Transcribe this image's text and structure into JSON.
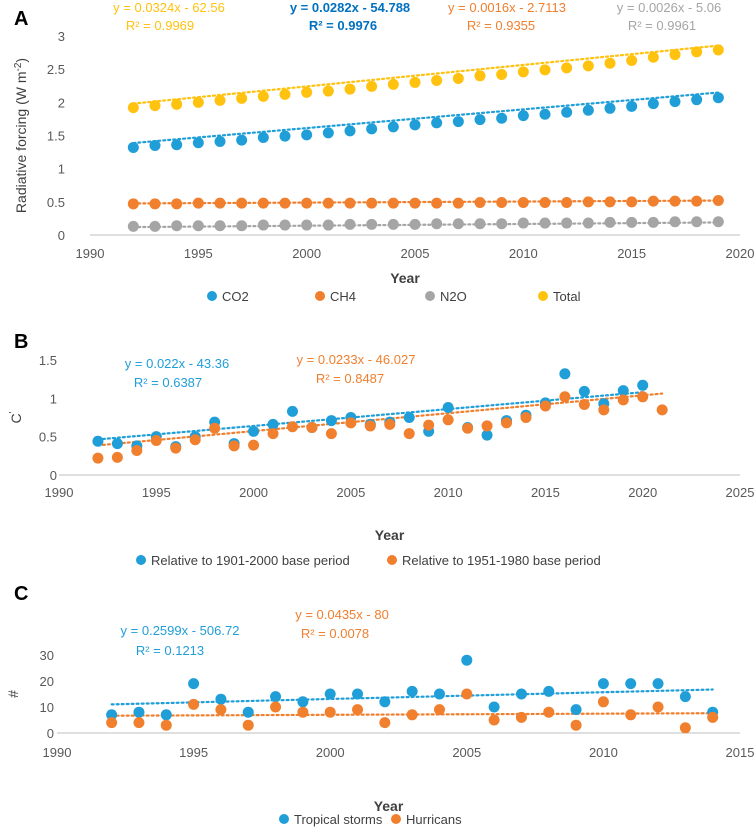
{
  "colors": {
    "co2": "#1F9ED8",
    "ch4": "#F07F2E",
    "n2o": "#A5A5A5",
    "total": "#FFC20E",
    "eq_co2": "#0070C0",
    "axis": "#BFBFBF",
    "text": "#595959",
    "dark": "#000000"
  },
  "chart_data": [
    {
      "panel": "A",
      "type": "scatter",
      "xlabel": "Year",
      "ylabel": "Radiative forcing (W m",
      "ylabel_sup": "-2",
      "ylabel_end": ")",
      "xlim": [
        1990,
        2020
      ],
      "ylim": [
        0,
        3
      ],
      "xticks": [
        "1990",
        "1995",
        "2000",
        "2005",
        "2010",
        "2015",
        "2020"
      ],
      "yticks": [
        "0",
        "0.5",
        "1",
        "1.5",
        "2",
        "2.5",
        "3"
      ],
      "x": [
        1992,
        1993,
        1994,
        1995,
        1996,
        1997,
        1998,
        1999,
        2000,
        2001,
        2002,
        2003,
        2004,
        2005,
        2006,
        2007,
        2008,
        2009,
        2010,
        2011,
        2012,
        2013,
        2014,
        2015,
        2016,
        2017,
        2018,
        2019
      ],
      "series": [
        {
          "name": "CO2",
          "color_key": "co2",
          "values": [
            1.32,
            1.35,
            1.36,
            1.39,
            1.41,
            1.43,
            1.47,
            1.49,
            1.51,
            1.54,
            1.57,
            1.6,
            1.63,
            1.66,
            1.69,
            1.71,
            1.74,
            1.76,
            1.8,
            1.82,
            1.85,
            1.88,
            1.91,
            1.94,
            1.98,
            2.01,
            2.04,
            2.07
          ],
          "fit": [
            0.0282,
            -54.788
          ]
        },
        {
          "name": "CH4",
          "color_key": "ch4",
          "values": [
            0.47,
            0.47,
            0.47,
            0.48,
            0.48,
            0.48,
            0.48,
            0.48,
            0.48,
            0.48,
            0.48,
            0.48,
            0.48,
            0.48,
            0.48,
            0.48,
            0.49,
            0.49,
            0.49,
            0.49,
            0.49,
            0.5,
            0.5,
            0.5,
            0.51,
            0.51,
            0.51,
            0.52
          ],
          "fit": [
            0.0016,
            -2.7113
          ]
        },
        {
          "name": "N2O",
          "color_key": "n2o",
          "values": [
            0.13,
            0.13,
            0.14,
            0.14,
            0.14,
            0.14,
            0.15,
            0.15,
            0.15,
            0.15,
            0.16,
            0.16,
            0.16,
            0.16,
            0.17,
            0.17,
            0.17,
            0.17,
            0.18,
            0.18,
            0.18,
            0.18,
            0.19,
            0.19,
            0.19,
            0.2,
            0.2,
            0.2
          ],
          "fit": [
            0.0026,
            -5.06
          ]
        },
        {
          "name": "Total",
          "color_key": "total",
          "values": [
            1.92,
            1.95,
            1.97,
            2.0,
            2.03,
            2.06,
            2.09,
            2.12,
            2.15,
            2.17,
            2.2,
            2.24,
            2.27,
            2.3,
            2.33,
            2.36,
            2.4,
            2.42,
            2.46,
            2.49,
            2.52,
            2.55,
            2.59,
            2.63,
            2.68,
            2.72,
            2.76,
            2.79
          ],
          "fit": [
            0.0324,
            -62.56
          ]
        }
      ],
      "equations": [
        {
          "eq": "y = 0.0324x - 62.56",
          "r2": "R² = 0.9969",
          "color_key": "total"
        },
        {
          "eq": "y = 0.0282x - 54.788",
          "r2": "R² = 0.9976",
          "color_key": "eq_co2"
        },
        {
          "eq": "y = 0.0016x - 2.7113",
          "r2": "R² = 0.9355",
          "color_key": "ch4"
        },
        {
          "eq": "y = 0.0026x - 5.06",
          "r2": "R² = 0.9961",
          "color_key": "n2o"
        }
      ],
      "legend": [
        "CO2",
        "CH4",
        "N2O",
        "Total"
      ]
    },
    {
      "panel": "B",
      "type": "scatter",
      "xlabel": "Year",
      "ylabel": "C",
      "ylabel_sup": "'",
      "xlim": [
        1990,
        2025
      ],
      "ylim": [
        0,
        1.5
      ],
      "xticks": [
        "1990",
        "1995",
        "2000",
        "2005",
        "2010",
        "2015",
        "2020",
        "2025"
      ],
      "yticks": [
        "0",
        "0.5",
        "1",
        "1.5"
      ],
      "x": [
        1992,
        1993,
        1994,
        1995,
        1996,
        1997,
        1998,
        1999,
        2000,
        2001,
        2002,
        2003,
        2004,
        2005,
        2006,
        2007,
        2008,
        2009,
        2010,
        2011,
        2012,
        2013,
        2014,
        2015,
        2016,
        2017,
        2018,
        2019,
        2020,
        2021
      ],
      "series": [
        {
          "name": "Relative to 1901-2000 base period",
          "color_key": "co2",
          "values": [
            0.44,
            0.41,
            0.38,
            0.5,
            0.37,
            0.5,
            0.69,
            0.41,
            0.57,
            0.66,
            0.83,
            0.62,
            0.71,
            0.75,
            0.66,
            0.69,
            0.75,
            0.57,
            0.88,
            0.62,
            0.52,
            0.71,
            0.78,
            0.94,
            1.32,
            1.09,
            0.93,
            1.1,
            1.17,
            null
          ],
          "fit": [
            0.022,
            -43.36
          ]
        },
        {
          "name": "Relative to 1951-1980 base period",
          "color_key": "ch4",
          "values": [
            0.22,
            0.23,
            0.32,
            0.45,
            0.35,
            0.46,
            0.61,
            0.38,
            0.39,
            0.54,
            0.63,
            0.62,
            0.54,
            0.68,
            0.64,
            0.66,
            0.54,
            0.65,
            0.72,
            0.61,
            0.64,
            0.68,
            0.75,
            0.9,
            1.02,
            0.92,
            0.85,
            0.98,
            1.02,
            0.85
          ],
          "fit": [
            0.0233,
            -46.027
          ]
        }
      ],
      "equations": [
        {
          "eq": "y = 0.022x - 43.36",
          "r2": "R² = 0.6387",
          "color_key": "co2"
        },
        {
          "eq": "y = 0.0233x - 46.027",
          "r2": "R² = 0.8487",
          "color_key": "ch4"
        }
      ],
      "legend": [
        "Relative to 1901-2000 base period",
        "Relative to 1951-1980 base period"
      ]
    },
    {
      "panel": "C",
      "type": "scatter",
      "xlabel": "Year",
      "ylabel": "#",
      "xlim": [
        1990,
        2015
      ],
      "ylim": [
        0,
        30
      ],
      "xticks": [
        "1990",
        "1995",
        "2000",
        "2005",
        "2010",
        "2015"
      ],
      "yticks": [
        "0",
        "10",
        "20",
        "30"
      ],
      "x": [
        1992,
        1993,
        1994,
        1995,
        1996,
        1997,
        1998,
        1999,
        2000,
        2001,
        2002,
        2003,
        2004,
        2005,
        2006,
        2007,
        2008,
        2009,
        2010,
        2011,
        2012,
        2013,
        2014
      ],
      "series": [
        {
          "name": "Tropical storms",
          "color_key": "co2",
          "values": [
            7,
            8,
            7,
            19,
            13,
            8,
            14,
            12,
            15,
            15,
            12,
            16,
            15,
            28,
            10,
            15,
            16,
            9,
            19,
            19,
            19,
            14,
            8
          ],
          "fit": [
            0.2599,
            -506.72
          ]
        },
        {
          "name": "Hurricans",
          "color_key": "ch4",
          "values": [
            4,
            4,
            3,
            11,
            9,
            3,
            10,
            8,
            8,
            9,
            4,
            7,
            9,
            15,
            5,
            6,
            8,
            3,
            12,
            7,
            10,
            2,
            6
          ],
          "fit": [
            0.0435,
            -80
          ]
        }
      ],
      "equations": [
        {
          "eq": "y = 0.2599x - 506.72",
          "r2": "R² = 0.1213",
          "color_key": "co2"
        },
        {
          "eq": "y = 0.0435x - 80",
          "r2": "R² = 0.0078",
          "color_key": "ch4"
        }
      ],
      "legend": [
        "Tropical storms",
        "Hurricans"
      ]
    }
  ]
}
